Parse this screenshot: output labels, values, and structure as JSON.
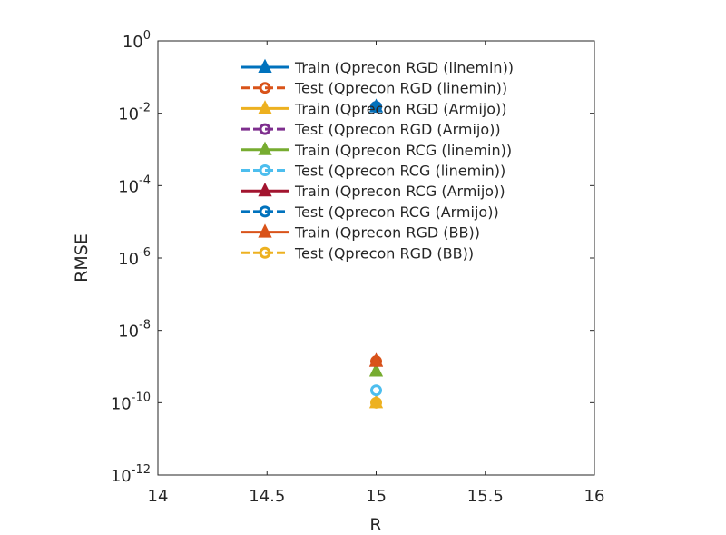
{
  "chart_data": {
    "type": "scatter",
    "xlabel": "R",
    "ylabel": "RMSE",
    "xlim": [
      14,
      16
    ],
    "ylim": [
      1e-12,
      1
    ],
    "y_scale": "log",
    "grid": false,
    "legend_position": "top-right",
    "x_ticks": [
      {
        "value": 14,
        "label": "14"
      },
      {
        "value": 14.5,
        "label": "14.5"
      },
      {
        "value": 15,
        "label": "15"
      },
      {
        "value": 15.5,
        "label": "15.5"
      },
      {
        "value": 16,
        "label": "16"
      }
    ],
    "y_ticks": [
      {
        "value": 1,
        "base": "10",
        "exp": "0"
      },
      {
        "value": 0.01,
        "base": "10",
        "exp": "-2"
      },
      {
        "value": 0.0001,
        "base": "10",
        "exp": "-4"
      },
      {
        "value": 1e-06,
        "base": "10",
        "exp": "-6"
      },
      {
        "value": 1e-08,
        "base": "10",
        "exp": "-8"
      },
      {
        "value": 1e-10,
        "base": "10",
        "exp": "-10"
      },
      {
        "value": 1e-12,
        "base": "10",
        "exp": "-12"
      }
    ],
    "series": [
      {
        "name": "Train (Qprecon RGD (linemin))",
        "color": "#0072BD",
        "marker": "triangle",
        "dashed": false,
        "points": [
          [
            15,
            0.015
          ]
        ]
      },
      {
        "name": "Test (Qprecon RGD (linemin))",
        "color": "#D95319",
        "marker": "circle",
        "dashed": true,
        "points": [
          [
            15,
            1.4e-09
          ]
        ]
      },
      {
        "name": "Train (Qprecon RGD (Armijo))",
        "color": "#EDB120",
        "marker": "triangle",
        "dashed": false,
        "points": [
          [
            15,
            1e-10
          ]
        ]
      },
      {
        "name": "Test (Qprecon RGD (Armijo))",
        "color": "#7E2F8E",
        "marker": "circle",
        "dashed": true,
        "points": [
          [
            15,
            0.015
          ]
        ]
      },
      {
        "name": "Train (Qprecon RCG (linemin))",
        "color": "#77AC30",
        "marker": "triangle",
        "dashed": false,
        "points": [
          [
            15,
            7.5e-10
          ]
        ]
      },
      {
        "name": "Test (Qprecon RCG (linemin))",
        "color": "#4DBEEE",
        "marker": "circle",
        "dashed": true,
        "points": [
          [
            15,
            2.2e-10
          ]
        ]
      },
      {
        "name": "Train (Qprecon RCG (Armijo))",
        "color": "#A2142F",
        "marker": "triangle",
        "dashed": false,
        "points": [
          [
            15,
            1.4e-09
          ]
        ]
      },
      {
        "name": "Test (Qprecon RCG (Armijo))",
        "color": "#0072BD",
        "marker": "circle",
        "dashed": true,
        "points": [
          [
            15,
            0.015
          ]
        ]
      },
      {
        "name": "Train (Qprecon RGD (BB))",
        "color": "#D95319",
        "marker": "triangle",
        "dashed": false,
        "points": [
          [
            15,
            1.4e-09
          ]
        ]
      },
      {
        "name": "Test (Qprecon RGD (BB))",
        "color": "#EDB120",
        "marker": "circle",
        "dashed": true,
        "points": [
          [
            15,
            1e-10
          ]
        ]
      }
    ]
  }
}
